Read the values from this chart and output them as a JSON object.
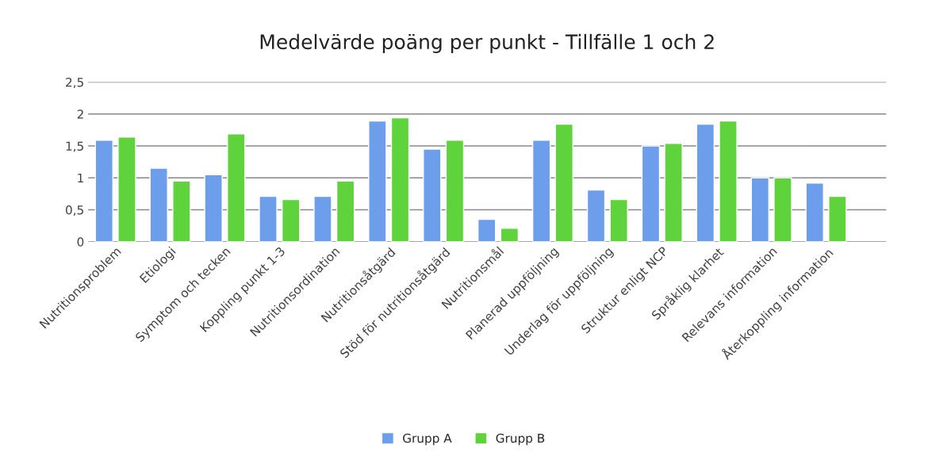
{
  "chart_data": {
    "type": "bar",
    "title": "Medelvärde poäng per punkt - Tillfälle 1 och 2",
    "categories": [
      "Nutritionsproblem",
      "Etiologi",
      "Symptom och tecken",
      "Koppling punkt 1-3",
      "Nutritionsordination",
      "Nutritionsåtgärd",
      "Stöd för nutritionsåtgärd",
      "Nutritionsmål",
      "Planerad uppföljning",
      "Underlag för uppföljning",
      "Struktur enligt NCP",
      "Språklig klarhet",
      "Relevans information",
      "Återkoppling information"
    ],
    "series": [
      {
        "name": "Grupp A",
        "color": "#6d9eeb",
        "values": [
          1.59,
          1.15,
          1.05,
          0.71,
          0.71,
          1.89,
          1.45,
          0.35,
          1.59,
          0.81,
          1.5,
          1.84,
          1.0,
          0.92
        ]
      },
      {
        "name": "Grupp B",
        "color": "#5fd33c",
        "values": [
          1.64,
          0.95,
          1.69,
          0.66,
          0.95,
          1.94,
          1.59,
          0.21,
          1.84,
          0.66,
          1.54,
          1.89,
          1.0,
          0.71
        ]
      }
    ],
    "ylim": [
      0,
      2.5
    ],
    "yticks": [
      {
        "value": 0,
        "label": "0"
      },
      {
        "value": 0.5,
        "label": "0,5"
      },
      {
        "value": 1,
        "label": "1"
      },
      {
        "value": 1.5,
        "label": "1,5"
      },
      {
        "value": 2,
        "label": "2"
      },
      {
        "value": 2.5,
        "label": "2,5"
      }
    ],
    "grid": "y",
    "legend": "bottom"
  }
}
